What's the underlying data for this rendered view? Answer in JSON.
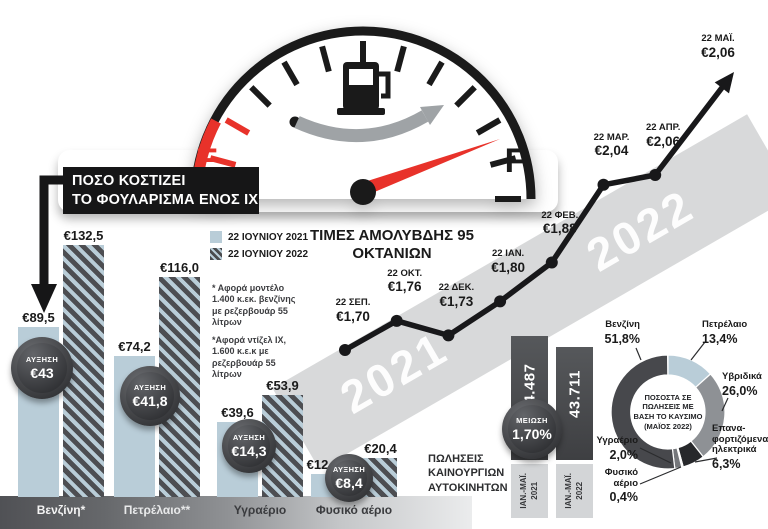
{
  "colors": {
    "ink": "#1a1a1a",
    "red": "#e8322a",
    "bar_2021": "#b9cdd8",
    "bar_2022_dark": "#4d4e52",
    "band_gray": "#d8d9da",
    "badge_dark": "#2a2b2e"
  },
  "headline": {
    "line1": "ΠΟΣΟ ΚΟΣΤΙΖΕΙ",
    "line2": "ΤΟ ΦΟΥΛΑΡΙΣΜΑ ΕΝΟΣ ΙΧ"
  },
  "gauge": {
    "empty": "E",
    "full": "F"
  },
  "legend": {
    "items": [
      {
        "label": "22 ΙΟΥΝΙΟΥ 2021"
      },
      {
        "label": "22 ΙΟΥΝΙΟΥ 2022"
      }
    ]
  },
  "footnotes": {
    "first": "* Αφορά μοντέλο 1.400 κ.εκ. βενζίνης με ρεζερβουάρ 55 λίτρων",
    "second": "*Αφορά ντίζελ ΙΧ, 1.600 κ.ε.κ με ρεζερβουάρ 55 λίτρων"
  },
  "chart_data": [
    {
      "type": "bar",
      "name": "fillup-cost",
      "categories": [
        "Βενζίνη*",
        "Πετρέλαιο**",
        "Υγραέριο",
        "Φυσικό αέριο"
      ],
      "categories_colors": [
        "#f4f4f4",
        "#e8e9ea",
        "#3a3b3e",
        "#3a3b3e"
      ],
      "series": [
        {
          "name": "22 ΙΟΥΝΙΟΥ 2021",
          "values": [
            89.5,
            74.2,
            39.6,
            12
          ],
          "value_labels": [
            "€89,5",
            "€74,2",
            "€39,6",
            "€12"
          ]
        },
        {
          "name": "22 ΙΟΥΝΙΟΥ 2022",
          "values": [
            132.5,
            116.0,
            53.9,
            20.4
          ],
          "value_labels": [
            "€132,5",
            "€116,0",
            "€53,9",
            "€20,4"
          ]
        }
      ],
      "increase_badges": [
        {
          "label": "ΑΥΞΗΣΗ",
          "value": "€43"
        },
        {
          "label": "ΑΥΞΗΣΗ",
          "value": "€41,8"
        },
        {
          "label": "ΑΥΞΗΣΗ",
          "value": "€14,3"
        },
        {
          "label": "ΑΥΞΗΣΗ",
          "value": "€8,4"
        }
      ],
      "unit": "EUR",
      "ylim": [
        0,
        140
      ]
    },
    {
      "type": "line",
      "name": "unleaded-95",
      "title": "ΤΙΜΕΣ ΑΜΟΛΥΒΔΗΣ 95 ΟΚΤΑΝΙΩΝ",
      "x": [
        "22 ΣΕΠ.",
        "22 ΟΚΤ.",
        "22 ΔΕΚ.",
        "22 ΙΑΝ.",
        "22 ΦΕΒ.",
        "22 ΜΑΡ.",
        "22 ΑΠΡ.",
        "22 ΜΑΪ."
      ],
      "values": [
        1.7,
        1.76,
        1.73,
        1.8,
        1.88,
        2.04,
        2.06,
        2.06
      ],
      "point_labels": [
        "€1,70",
        "€1,76",
        "€1,73",
        "€1,80",
        "€1,88",
        "€2,04",
        "€2,06",
        "€2,06"
      ],
      "watermarks": [
        "2021",
        "2022"
      ],
      "ylim": [
        1.6,
        2.1
      ]
    },
    {
      "type": "bar",
      "name": "new-car-sales",
      "title": "ΠΩΛΗΣΕΙΣ ΚΑΙΝΟΥΡΓΙΩΝ ΑΥΤΟΚΙΝΗΤΩΝ",
      "categories": [
        "ΙΑΝ.-ΜΑΪ. 2021",
        "ΙΑΝ.-ΜΑΪ. 2022"
      ],
      "values": [
        44487,
        43711
      ],
      "value_labels": [
        "44.487",
        "43.711"
      ],
      "change_badge": {
        "label": "ΜΕΙΩΣΗ",
        "value": "1,70%"
      }
    },
    {
      "type": "pie",
      "name": "sales-share-by-fuel",
      "center_title": "ΠΟΣΟΣΤΑ ΣΕ ΠΩΛΗΣΕΙΣ ΜΕ ΒΑΣΗ ΤΟ ΚΑΥΣΙΜΟ (ΜΑΪΟΣ 2022)",
      "slices": [
        {
          "label": "Πετρέλαιο",
          "value": 13.4,
          "display": "13,4%",
          "color": "#b9cdd8",
          "label_lines": [
            "Πετρέλαιο"
          ]
        },
        {
          "label": "Υβριδικά",
          "value": 26.0,
          "display": "26,0%",
          "color": "#8e9195",
          "label_lines": [
            "Υβριδικά"
          ]
        },
        {
          "label": "Επαναφορτιζόμενα ηλεκτρικά",
          "value": 6.3,
          "display": "6,3%",
          "color": "#27282b",
          "label_lines": [
            "Επανα-",
            "φορτιζόμενα",
            "ηλεκτρικά"
          ]
        },
        {
          "label": "Φυσικό αέριο",
          "value": 0.4,
          "display": "0,4%",
          "color": "#d6d8da",
          "label_lines": [
            "Φυσικό",
            "αέριο"
          ]
        },
        {
          "label": "Υγραέριο",
          "value": 2.0,
          "display": "2,0%",
          "color": "#75777b",
          "label_lines": [
            "Υγραέριο"
          ]
        },
        {
          "label": "Βενζίνη",
          "value": 51.8,
          "display": "51,8%",
          "color": "#47484c",
          "label_lines": [
            "Βενζίνη"
          ]
        }
      ]
    }
  ]
}
